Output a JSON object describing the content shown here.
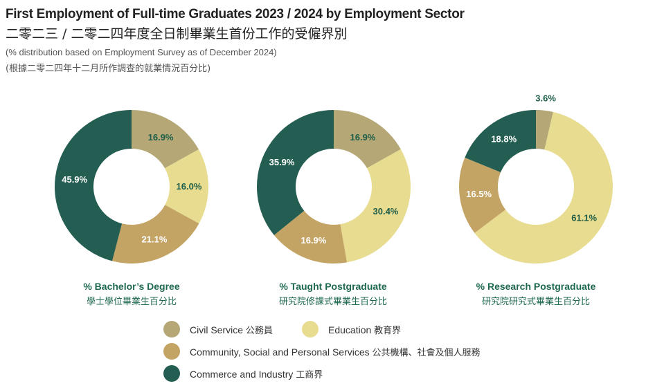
{
  "header": {
    "title_en": "First Employment of Full-time Graduates 2023 / 2024 by Employment Sector",
    "title_zh": "二零二三 / 二零二四年度全日制畢業生首份工作的受僱界別",
    "subtitle_en": "(% distribution based on Employment Survey as of December 2024)",
    "subtitle_zh": "(根據二零二四年十二月所作調查的就業情況百分比)"
  },
  "colors": {
    "civil_service": "#b5a876",
    "education": "#e8dc90",
    "community": "#c4a464",
    "commerce": "#245e52",
    "label_text": "#1f5e4a"
  },
  "legend": [
    {
      "key": "civil_service",
      "label_en": "Civil Service",
      "label_zh": "公務員"
    },
    {
      "key": "education",
      "label_en": "Education",
      "label_zh": "教育界"
    },
    {
      "key": "community",
      "label_en": "Community, Social and Personal Services",
      "label_zh": "公共機構、社會及個人服務"
    },
    {
      "key": "commerce",
      "label_en": "Commerce and Industry",
      "label_zh": "工商界"
    }
  ],
  "chart_data": [
    {
      "type": "pie",
      "title_en": "% Bachelor’s Degree",
      "title_zh": "學士學位畢業生百分比",
      "slices": [
        {
          "key": "civil_service",
          "value": 16.9,
          "label": "16.9%"
        },
        {
          "key": "education",
          "value": 16.0,
          "label": "16.0%"
        },
        {
          "key": "community",
          "value": 21.1,
          "label": "21.1%"
        },
        {
          "key": "commerce",
          "value": 45.9,
          "label": "45.9%"
        }
      ]
    },
    {
      "type": "pie",
      "title_en": "% Taught Postgraduate",
      "title_zh": "研究院修課式畢業生百分比",
      "slices": [
        {
          "key": "civil_service",
          "value": 16.9,
          "label": "16.9%"
        },
        {
          "key": "education",
          "value": 30.4,
          "label": "30.4%"
        },
        {
          "key": "community",
          "value": 16.9,
          "label": "16.9%"
        },
        {
          "key": "commerce",
          "value": 35.9,
          "label": "35.9%"
        }
      ]
    },
    {
      "type": "pie",
      "title_en": "% Research Postgraduate",
      "title_zh": "研究院研究式畢業生百分比",
      "slices": [
        {
          "key": "civil_service",
          "value": 3.6,
          "label": "3.6%"
        },
        {
          "key": "education",
          "value": 61.1,
          "label": "61.1%"
        },
        {
          "key": "community",
          "value": 16.5,
          "label": "16.5%"
        },
        {
          "key": "commerce",
          "value": 18.8,
          "label": "18.8%"
        }
      ]
    }
  ]
}
